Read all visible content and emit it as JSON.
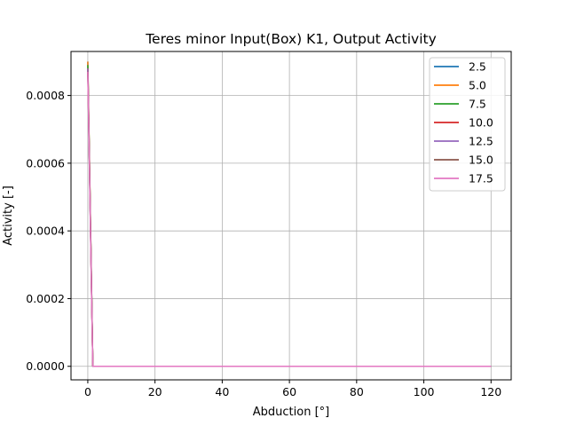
{
  "chart_data": {
    "type": "line",
    "title": "Teres minor Input(Box) K1, Output Activity",
    "xlabel": "Abduction [°]",
    "ylabel": "Activity [-]",
    "xlim": [
      -5,
      126
    ],
    "ylim": [
      -4e-05,
      0.00093
    ],
    "xticks": [
      0,
      20,
      40,
      60,
      80,
      100,
      120
    ],
    "xtick_labels": [
      "0",
      "20",
      "40",
      "60",
      "80",
      "100",
      "120"
    ],
    "yticks": [
      0,
      0.0002,
      0.0004,
      0.0006,
      0.0008
    ],
    "ytick_labels": [
      "0.0000",
      "0.0002",
      "0.0004",
      "0.0006",
      "0.0008"
    ],
    "grid": true,
    "legend_position": "top-right",
    "series": [
      {
        "name": "2.5",
        "color": "#1f77b4",
        "x": [
          0,
          0.5,
          1.0,
          1.5,
          120
        ],
        "y": [
          0.0009,
          0.0006,
          0.0003,
          0.0,
          0.0
        ]
      },
      {
        "name": "5.0",
        "color": "#ff7f0e",
        "x": [
          0,
          0.5,
          1.0,
          1.5,
          120
        ],
        "y": [
          0.0009,
          0.00061,
          0.0003,
          0.0,
          0.0
        ]
      },
      {
        "name": "7.5",
        "color": "#2ca02c",
        "x": [
          0,
          0.5,
          1.0,
          1.5,
          120
        ],
        "y": [
          0.00089,
          0.0006,
          0.0003,
          0.0,
          0.0
        ]
      },
      {
        "name": "10.0",
        "color": "#d62728",
        "x": [
          0,
          0.5,
          1.0,
          1.5,
          120
        ],
        "y": [
          0.00088,
          0.0006,
          0.00029,
          0.0,
          0.0
        ]
      },
      {
        "name": "12.5",
        "color": "#9467bd",
        "x": [
          0,
          0.5,
          1.0,
          1.5,
          120
        ],
        "y": [
          0.00088,
          0.00059,
          0.00029,
          0.0,
          0.0
        ]
      },
      {
        "name": "15.0",
        "color": "#8c564b",
        "x": [
          0,
          0.5,
          1.0,
          1.5,
          120
        ],
        "y": [
          0.00087,
          0.00059,
          0.00029,
          0.0,
          0.0
        ]
      },
      {
        "name": "17.5",
        "color": "#e377c2",
        "x": [
          0,
          0.5,
          1.0,
          1.5,
          120
        ],
        "y": [
          0.00087,
          0.00058,
          0.00028,
          0.0,
          0.0
        ]
      }
    ]
  }
}
